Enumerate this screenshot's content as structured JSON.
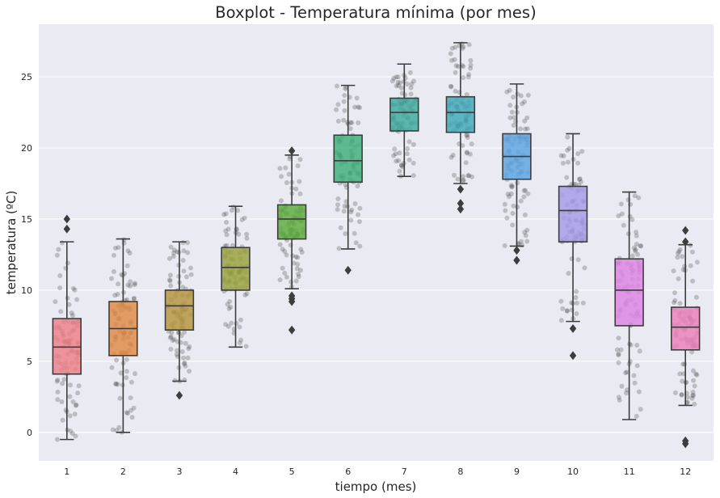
{
  "chart_data": {
    "type": "box",
    "title": "Boxplot - Temperatura mínima (por mes)",
    "xlabel": "tiempo (mes)",
    "ylabel": "temperatura (ºC)",
    "ylim": [
      -2,
      28.7
    ],
    "yticks": [
      "0",
      "5",
      "10",
      "15",
      "20",
      "25"
    ],
    "grid": true,
    "overlay": "stripplot",
    "categories": [
      "1",
      "2",
      "3",
      "4",
      "5",
      "6",
      "7",
      "8",
      "9",
      "10",
      "11",
      "12"
    ],
    "colors": [
      "#ef7f87",
      "#df8a43",
      "#b4953c",
      "#98a23b",
      "#5bad3b",
      "#3eb07a",
      "#3eab9e",
      "#3ea9b9",
      "#5aa4e0",
      "#a59be8",
      "#de83e4",
      "#ee7fbb"
    ],
    "series": [
      {
        "month": "1",
        "whisker_low": -0.5,
        "q1": 4.1,
        "median": 6.0,
        "q3": 8.0,
        "whisker_high": 13.4,
        "outliers": [
          14.3,
          15.0
        ]
      },
      {
        "month": "2",
        "whisker_low": 0.0,
        "q1": 5.4,
        "median": 7.3,
        "q3": 9.2,
        "whisker_high": 13.6,
        "outliers": []
      },
      {
        "month": "3",
        "whisker_low": 3.6,
        "q1": 7.2,
        "median": 8.9,
        "q3": 10.0,
        "whisker_high": 13.4,
        "outliers": [
          2.6
        ]
      },
      {
        "month": "4",
        "whisker_low": 6.0,
        "q1": 10.0,
        "median": 11.6,
        "q3": 13.0,
        "whisker_high": 15.9,
        "outliers": []
      },
      {
        "month": "5",
        "whisker_low": 10.1,
        "q1": 13.6,
        "median": 15.0,
        "q3": 16.0,
        "whisker_high": 19.5,
        "outliers": [
          7.2,
          9.2,
          9.4,
          9.6,
          19.8
        ]
      },
      {
        "month": "6",
        "whisker_low": 12.9,
        "q1": 17.6,
        "median": 19.1,
        "q3": 20.9,
        "whisker_high": 24.4,
        "outliers": [
          11.4
        ]
      },
      {
        "month": "7",
        "whisker_low": 18.0,
        "q1": 21.2,
        "median": 22.5,
        "q3": 23.5,
        "whisker_high": 25.9,
        "outliers": []
      },
      {
        "month": "8",
        "whisker_low": 17.5,
        "q1": 21.1,
        "median": 22.5,
        "q3": 23.6,
        "whisker_high": 27.4,
        "outliers": [
          15.7,
          16.1,
          17.1
        ]
      },
      {
        "month": "9",
        "whisker_low": 13.1,
        "q1": 17.8,
        "median": 19.4,
        "q3": 21.0,
        "whisker_high": 24.5,
        "outliers": [
          12.1,
          12.8
        ]
      },
      {
        "month": "10",
        "whisker_low": 7.8,
        "q1": 13.4,
        "median": 15.6,
        "q3": 17.3,
        "whisker_high": 21.0,
        "outliers": [
          5.4,
          7.3
        ]
      },
      {
        "month": "11",
        "whisker_low": 0.9,
        "q1": 7.5,
        "median": 10.0,
        "q3": 12.2,
        "whisker_high": 16.9,
        "outliers": []
      },
      {
        "month": "12",
        "whisker_low": 1.9,
        "q1": 5.8,
        "median": 7.4,
        "q3": 8.8,
        "whisker_high": 13.2,
        "outliers": [
          -0.8,
          -0.6,
          13.4,
          14.2
        ]
      }
    ]
  }
}
